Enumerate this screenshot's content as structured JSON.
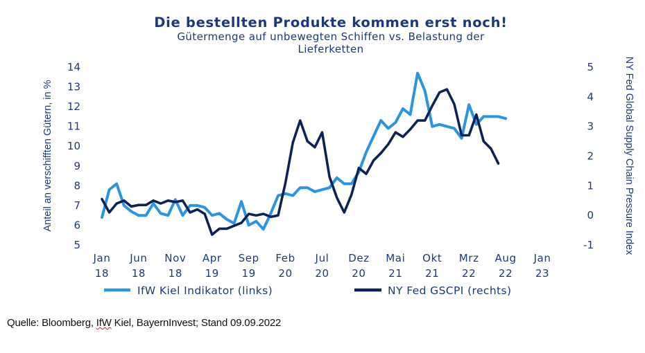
{
  "chart_data": {
    "type": "line",
    "title": "Die bestellten Produkte kommen erst noch!",
    "subtitle_line1": "Gütermenge auf unbewegten Schiffen vs. Belastung der",
    "subtitle_line2": "Lieferketten",
    "ylabel_left": "Anteil an verschifften Gütern, in %",
    "ylabel_right": "NY Fed Global Supply Chain Pressure Index",
    "ylim_left": [
      5,
      14
    ],
    "ylim_right": [
      -1,
      5
    ],
    "yticks_left": [
      "14",
      "13",
      "12",
      "11",
      "10",
      "9",
      "8",
      "7",
      "6",
      "5"
    ],
    "yticks_right": [
      "5",
      "4",
      "3",
      "2",
      "1",
      "0",
      "-1"
    ],
    "xlim": [
      "2018-01",
      "2023-01"
    ],
    "xtick_labels": [
      {
        "month": "Jan",
        "year": "18"
      },
      {
        "month": "Jun",
        "year": "18"
      },
      {
        "month": "Nov",
        "year": "18"
      },
      {
        "month": "Apr",
        "year": "19"
      },
      {
        "month": "Sep",
        "year": "19"
      },
      {
        "month": "Feb",
        "year": "20"
      },
      {
        "month": "Jul",
        "year": "20"
      },
      {
        "month": "Dez",
        "year": "20"
      },
      {
        "month": "Mai",
        "year": "21"
      },
      {
        "month": "Okt",
        "year": "21"
      },
      {
        "month": "Mrz",
        "year": "22"
      },
      {
        "month": "Aug",
        "year": "22"
      },
      {
        "month": "Jan",
        "year": "23"
      }
    ],
    "legend_position": "bottom",
    "grid": false,
    "series": [
      {
        "name": "IfW Kiel Indikator (links)",
        "axis": "left",
        "color": "#2b95e0",
        "points": [
          [
            "2018-01",
            6.4
          ],
          [
            "2018-02",
            7.8
          ],
          [
            "2018-03",
            8.1
          ],
          [
            "2018-04",
            7.0
          ],
          [
            "2018-05",
            6.7
          ],
          [
            "2018-06",
            6.5
          ],
          [
            "2018-07",
            6.5
          ],
          [
            "2018-08",
            7.1
          ],
          [
            "2018-09",
            6.6
          ],
          [
            "2018-10",
            6.5
          ],
          [
            "2018-11",
            7.3
          ],
          [
            "2018-12",
            6.5
          ],
          [
            "2019-01",
            7.0
          ],
          [
            "2019-02",
            7.0
          ],
          [
            "2019-03",
            6.9
          ],
          [
            "2019-04",
            6.5
          ],
          [
            "2019-05",
            6.6
          ],
          [
            "2019-06",
            6.3
          ],
          [
            "2019-07",
            6.1
          ],
          [
            "2019-08",
            7.2
          ],
          [
            "2019-09",
            6.0
          ],
          [
            "2019-10",
            6.2
          ],
          [
            "2019-11",
            5.8
          ],
          [
            "2019-12",
            6.6
          ],
          [
            "2020-01",
            7.5
          ],
          [
            "2020-02",
            7.6
          ],
          [
            "2020-03",
            7.5
          ],
          [
            "2020-04",
            7.9
          ],
          [
            "2020-05",
            7.9
          ],
          [
            "2020-06",
            7.7
          ],
          [
            "2020-07",
            7.8
          ],
          [
            "2020-08",
            7.9
          ],
          [
            "2020-09",
            8.4
          ],
          [
            "2020-10",
            8.1
          ],
          [
            "2020-11",
            8.1
          ],
          [
            "2020-12",
            8.7
          ],
          [
            "2021-01",
            9.7
          ],
          [
            "2021-02",
            10.5
          ],
          [
            "2021-03",
            11.3
          ],
          [
            "2021-04",
            10.9
          ],
          [
            "2021-05",
            11.2
          ],
          [
            "2021-06",
            11.9
          ],
          [
            "2021-07",
            11.6
          ],
          [
            "2021-08",
            13.7
          ],
          [
            "2021-09",
            12.8
          ],
          [
            "2021-10",
            11.0
          ],
          [
            "2021-11",
            11.1
          ],
          [
            "2021-12",
            11.0
          ],
          [
            "2022-01",
            10.9
          ],
          [
            "2022-02",
            10.4
          ],
          [
            "2022-03",
            12.1
          ],
          [
            "2022-04",
            11.1
          ],
          [
            "2022-05",
            11.5
          ],
          [
            "2022-06",
            11.5
          ],
          [
            "2022-07",
            11.5
          ],
          [
            "2022-08",
            11.4
          ]
        ]
      },
      {
        "name": "NY Fed GSCPI (rechts)",
        "axis": "right",
        "color": "#0d2357",
        "points": [
          [
            "2018-01",
            0.55
          ],
          [
            "2018-02",
            0.1
          ],
          [
            "2018-03",
            0.4
          ],
          [
            "2018-04",
            0.5
          ],
          [
            "2018-05",
            0.3
          ],
          [
            "2018-06",
            0.35
          ],
          [
            "2018-07",
            0.35
          ],
          [
            "2018-08",
            0.5
          ],
          [
            "2018-09",
            0.4
          ],
          [
            "2018-10",
            0.5
          ],
          [
            "2018-11",
            0.45
          ],
          [
            "2018-12",
            0.5
          ],
          [
            "2019-01",
            0.1
          ],
          [
            "2019-02",
            0.2
          ],
          [
            "2019-03",
            0.05
          ],
          [
            "2019-04",
            -0.65
          ],
          [
            "2019-05",
            -0.45
          ],
          [
            "2019-06",
            -0.45
          ],
          [
            "2019-07",
            -0.35
          ],
          [
            "2019-08",
            -0.25
          ],
          [
            "2019-09",
            0.05
          ],
          [
            "2019-10",
            0.0
          ],
          [
            "2019-11",
            0.05
          ],
          [
            "2019-12",
            -0.05
          ],
          [
            "2020-01",
            0.0
          ],
          [
            "2020-02",
            1.1
          ],
          [
            "2020-03",
            2.45
          ],
          [
            "2020-04",
            3.2
          ],
          [
            "2020-05",
            2.5
          ],
          [
            "2020-06",
            2.3
          ],
          [
            "2020-07",
            2.8
          ],
          [
            "2020-08",
            1.3
          ],
          [
            "2020-09",
            0.6
          ],
          [
            "2020-10",
            0.1
          ],
          [
            "2020-11",
            0.7
          ],
          [
            "2020-12",
            1.6
          ],
          [
            "2021-01",
            1.4
          ],
          [
            "2021-02",
            1.85
          ],
          [
            "2021-03",
            2.1
          ],
          [
            "2021-04",
            2.4
          ],
          [
            "2021-05",
            2.8
          ],
          [
            "2021-06",
            2.65
          ],
          [
            "2021-07",
            2.9
          ],
          [
            "2021-08",
            3.2
          ],
          [
            "2021-09",
            3.2
          ],
          [
            "2021-10",
            3.7
          ],
          [
            "2021-11",
            4.15
          ],
          [
            "2021-12",
            4.25
          ],
          [
            "2022-01",
            3.75
          ],
          [
            "2022-02",
            2.7
          ],
          [
            "2022-03",
            2.7
          ],
          [
            "2022-04",
            3.4
          ],
          [
            "2022-05",
            2.5
          ],
          [
            "2022-06",
            2.25
          ],
          [
            "2022-07",
            1.75
          ]
        ]
      }
    ]
  },
  "footer": {
    "source_prefix": "Quelle: Bloomberg, ",
    "source_ifw": "IfW",
    "source_suffix": " Kiel, BayernInvest; Stand 09.09.2022"
  }
}
